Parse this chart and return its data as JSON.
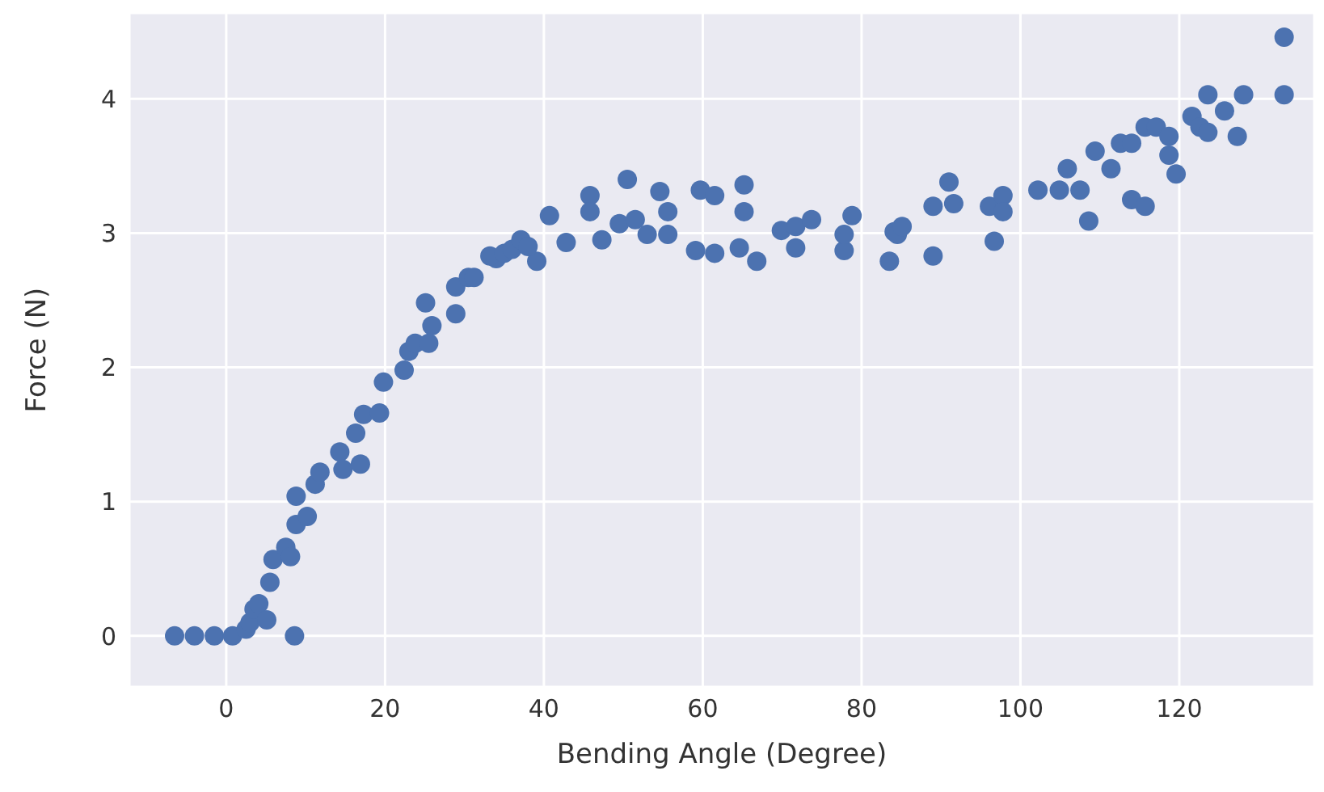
{
  "chart_data": {
    "type": "scatter",
    "xlabel": "Bending Angle (Degree)",
    "ylabel": "Force (N)",
    "xlim": [
      -12.2,
      137
    ],
    "ylim": [
      -0.38,
      4.64
    ],
    "xticks": [
      0,
      20,
      40,
      60,
      80,
      100,
      120
    ],
    "yticks": [
      0,
      1,
      2,
      3,
      4
    ],
    "grid": true,
    "marker": "circle",
    "legend": false,
    "series": [
      {
        "color": "#4c72b0",
        "x": [
          -6.5,
          -4,
          -1.5,
          0.8,
          8.6,
          2.5,
          3,
          3.5,
          4.1,
          5.1,
          5.5,
          5.9,
          7.5,
          8.1,
          8.8,
          8.8,
          10.2,
          11.2,
          11.8,
          14.3,
          14.7,
          16.9,
          16.3,
          17.3,
          19.3,
          19.8,
          22.4,
          23,
          23.8,
          25.5,
          25.1,
          25.9,
          28.9,
          28.9,
          30.5,
          34,
          39.1,
          31.2,
          33.2,
          35,
          36,
          37.1,
          38,
          40.7,
          42.8,
          45.8,
          45.8,
          47.3,
          49.5,
          50.5,
          51.5,
          53,
          54.6,
          55.6,
          55.6,
          59.1,
          59.7,
          61.5,
          61.5,
          64.6,
          65.2,
          65.2,
          66.8,
          69.9,
          71.7,
          71.7,
          73.7,
          77.8,
          77.8,
          78.8,
          83.5,
          84.1,
          84.5,
          85.1,
          89,
          89,
          91,
          91.6,
          96.7,
          96.1,
          97.8,
          97.8,
          102.2,
          104.9,
          105.9,
          107.5,
          108.6,
          109.4,
          111.4,
          112.6,
          114,
          114,
          115.7,
          115.7,
          117.1,
          118.7,
          118.7,
          119.6,
          121.6,
          122.6,
          123.6,
          123.6,
          125.7,
          127.3,
          128.1,
          133.2,
          133.2
        ],
        "values": [
          0,
          0,
          0,
          0,
          0,
          0.05,
          0.1,
          0.2,
          0.24,
          0.12,
          0.4,
          0.57,
          0.66,
          0.59,
          0.83,
          1.04,
          0.89,
          1.13,
          1.22,
          1.37,
          1.24,
          1.28,
          1.51,
          1.65,
          1.66,
          1.89,
          1.98,
          2.12,
          2.18,
          2.18,
          2.48,
          2.31,
          2.4,
          2.6,
          2.67,
          2.81,
          2.79,
          2.67,
          2.83,
          2.85,
          2.88,
          2.95,
          2.9,
          3.13,
          2.93,
          3.28,
          3.16,
          2.95,
          3.07,
          3.4,
          3.1,
          2.99,
          3.31,
          3.16,
          2.99,
          2.87,
          3.32,
          3.28,
          2.85,
          2.89,
          3.36,
          3.16,
          2.79,
          3.02,
          2.89,
          3.05,
          3.1,
          2.87,
          2.99,
          3.13,
          2.79,
          3.01,
          2.99,
          3.05,
          2.83,
          3.2,
          3.38,
          3.22,
          2.94,
          3.2,
          3.28,
          3.16,
          3.32,
          3.32,
          3.48,
          3.32,
          3.09,
          3.61,
          3.48,
          3.67,
          3.67,
          3.25,
          3.2,
          3.79,
          3.79,
          3.72,
          3.58,
          3.44,
          3.87,
          3.79,
          3.75,
          4.03,
          3.91,
          3.72,
          4.03,
          4.03,
          4.46
        ]
      }
    ]
  }
}
